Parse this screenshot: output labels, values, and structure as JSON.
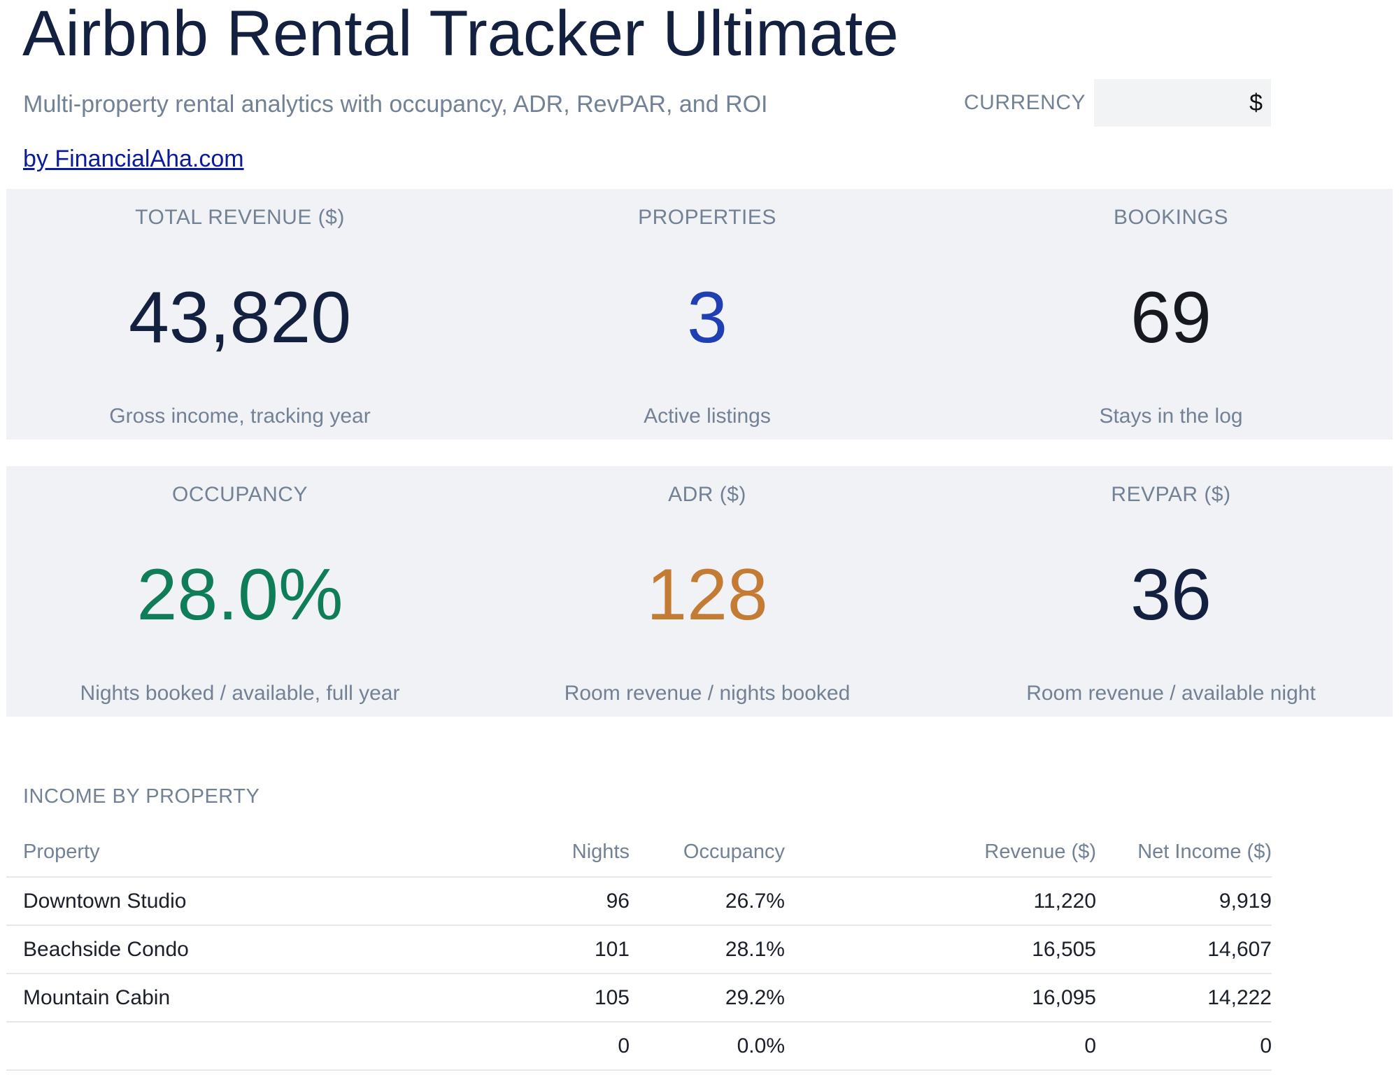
{
  "header": {
    "title": "Airbnb Rental Tracker Ultimate",
    "subtitle": "Multi-property rental analytics with occupancy, ADR, RevPAR, and ROI",
    "byline": "by FinancialAha.com",
    "currency_label": "CURRENCY",
    "currency_value": "$"
  },
  "kpis_row1": [
    {
      "label": "TOTAL REVENUE ($)",
      "value": "43,820",
      "desc": "Gross income, tracking year",
      "color": "#13203f"
    },
    {
      "label": "PROPERTIES",
      "value": "3",
      "desc": "Active listings",
      "color": "#1f3fb3"
    },
    {
      "label": "BOOKINGS",
      "value": "69",
      "desc": "Stays in the log",
      "color": "#16191f"
    }
  ],
  "kpis_row2": [
    {
      "label": "OCCUPANCY",
      "value": "28.0%",
      "desc": "Nights booked / available, full year",
      "color": "#0f7d57"
    },
    {
      "label": "ADR ($)",
      "value": "128",
      "desc": "Room revenue / nights booked",
      "color": "#c47c35"
    },
    {
      "label": "REVPAR ($)",
      "value": "36",
      "desc": "Room revenue / available night",
      "color": "#13203f"
    }
  ],
  "income_by_property": {
    "section_title": "INCOME BY PROPERTY",
    "columns": [
      "Property",
      "Nights",
      "Occupancy",
      "Revenue ($)",
      "Net Income ($)"
    ],
    "rows": [
      [
        "Downtown Studio",
        "96",
        "26.7%",
        "11,220",
        "9,919"
      ],
      [
        "Beachside Condo",
        "101",
        "28.1%",
        "16,505",
        "14,607"
      ],
      [
        "Mountain Cabin",
        "105",
        "29.2%",
        "16,095",
        "14,222"
      ],
      [
        "",
        "0",
        "0.0%",
        "0",
        "0"
      ]
    ]
  }
}
